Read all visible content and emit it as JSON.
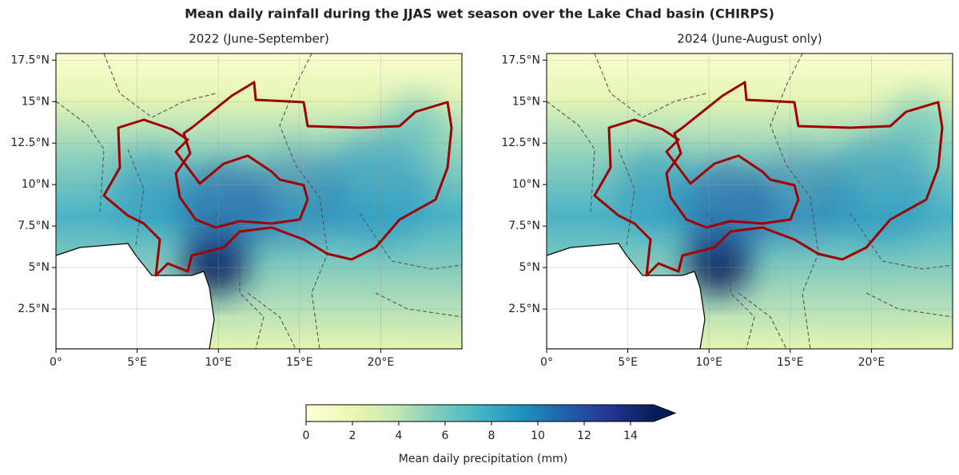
{
  "title": "Mean daily rainfall during the JJAS wet season over the Lake Chad basin (CHIRPS)",
  "chart_data": [
    {
      "type": "map",
      "title": "2022 (June-September)",
      "xlim": [
        0,
        25
      ],
      "ylim": [
        0.1,
        17.9
      ],
      "xticks": [
        {
          "value": 0,
          "label": "0°"
        },
        {
          "value": 5,
          "label": "5°E"
        },
        {
          "value": 10,
          "label": "10°E"
        },
        {
          "value": 15,
          "label": "15°E"
        },
        {
          "value": 20,
          "label": "20°E"
        }
      ],
      "yticks": [
        {
          "value": 2.5,
          "label": "2.5°N"
        },
        {
          "value": 5,
          "label": "5°N"
        },
        {
          "value": 7.5,
          "label": "7.5°N"
        },
        {
          "value": 10,
          "label": "10°N"
        },
        {
          "value": 12.5,
          "label": "12.5°N"
        },
        {
          "value": 15,
          "label": "15°N"
        },
        {
          "value": 17.5,
          "label": "17.5°N"
        }
      ],
      "grid": true
    },
    {
      "type": "map",
      "title": "2024 (June-August only)",
      "xlim": [
        0,
        25
      ],
      "ylim": [
        0.1,
        17.9
      ],
      "xticks": [
        {
          "value": 0,
          "label": "0°"
        },
        {
          "value": 5,
          "label": "5°E"
        },
        {
          "value": 10,
          "label": "10°E"
        },
        {
          "value": 15,
          "label": "15°E"
        },
        {
          "value": 20,
          "label": "20°E"
        }
      ],
      "yticks": [
        {
          "value": 2.5,
          "label": "2.5°N"
        },
        {
          "value": 5,
          "label": "5°N"
        },
        {
          "value": 7.5,
          "label": "7.5°N"
        },
        {
          "value": 10,
          "label": "10°N"
        },
        {
          "value": 12.5,
          "label": "12.5°N"
        },
        {
          "value": 15,
          "label": "15°N"
        },
        {
          "value": 17.5,
          "label": "17.5°N"
        }
      ],
      "grid": true
    }
  ],
  "colorbar": {
    "label": "Mean daily precipitation (mm)",
    "lim": [
      0,
      15
    ],
    "ticks": [
      0,
      2,
      4,
      6,
      8,
      10,
      12,
      14
    ],
    "colors": [
      "#ffffd9",
      "#edf8b1",
      "#c7e9b4",
      "#7fcdbb",
      "#41b6c4",
      "#1d91c0",
      "#225ea8",
      "#253494",
      "#081d58"
    ],
    "extend": "max"
  },
  "basin_color": "#a00000"
}
